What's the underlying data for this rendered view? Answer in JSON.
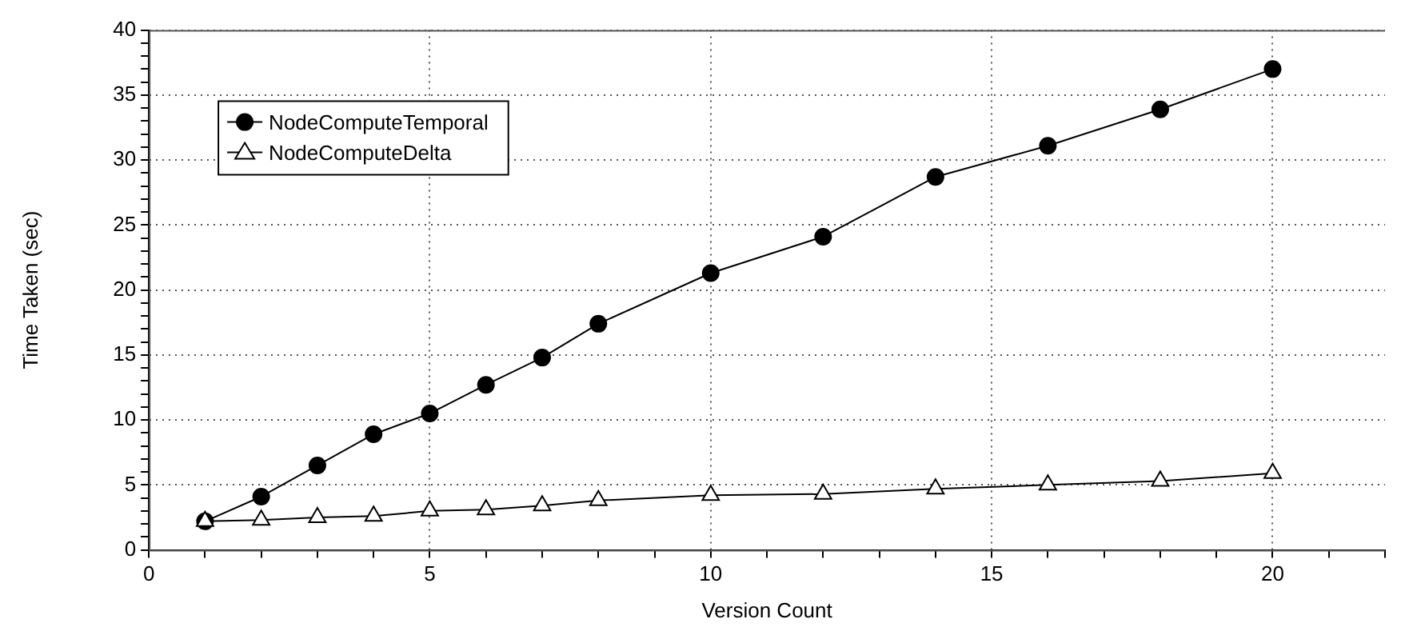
{
  "chart_data": {
    "type": "line",
    "xlabel": "Version Count",
    "ylabel": "Time Taken (sec)",
    "x": [
      1,
      2,
      3,
      4,
      5,
      6,
      7,
      8,
      10,
      12,
      14,
      16,
      18,
      20
    ],
    "series": [
      {
        "name": "NodeComputeTemporal",
        "color": "#000000",
        "marker": "circle",
        "values": [
          2.2,
          4.1,
          6.5,
          8.9,
          10.5,
          12.7,
          14.8,
          17.4,
          21.3,
          24.1,
          28.7,
          31.1,
          33.9,
          37.0
        ]
      },
      {
        "name": "NodeComputeDelta",
        "color": "#000000",
        "marker": "triangle",
        "values": [
          2.2,
          2.3,
          2.5,
          2.6,
          3.0,
          3.1,
          3.4,
          3.8,
          4.2,
          4.3,
          4.7,
          5.0,
          5.3,
          5.9
        ]
      }
    ],
    "xlim": [
      0,
      22
    ],
    "xticks": [
      0,
      {
        "value": 1,
        "label": null
      },
      {
        "value": 2,
        "label": null
      },
      {
        "value": 3,
        "label": null
      },
      {
        "value": 4,
        "label": null
      },
      5,
      {
        "value": 6,
        "label": null
      },
      {
        "value": 7,
        "label": null
      },
      {
        "value": 8,
        "label": null
      },
      {
        "value": 9,
        "label": null
      },
      10,
      {
        "value": 11,
        "label": null
      },
      {
        "value": 12,
        "label": null
      },
      {
        "value": 13,
        "label": null
      },
      {
        "value": 14,
        "label": null
      },
      15,
      {
        "value": 16,
        "label": null
      },
      {
        "value": 17,
        "label": null
      },
      {
        "value": 18,
        "label": null
      },
      {
        "value": 19,
        "label": null
      },
      20,
      {
        "value": 21,
        "label": null
      },
      {
        "value": 22,
        "label": null
      }
    ],
    "ylim": [
      0,
      40
    ],
    "yticks": [
      0,
      {
        "value": 1,
        "label": null
      },
      {
        "value": 2,
        "label": null
      },
      {
        "value": 3,
        "label": null
      },
      {
        "value": 4,
        "label": null
      },
      5,
      {
        "value": 6,
        "label": null
      },
      {
        "value": 7,
        "label": null
      },
      {
        "value": 8,
        "label": null
      },
      {
        "value": 9,
        "label": null
      },
      10,
      {
        "value": 11,
        "label": null
      },
      {
        "value": 12,
        "label": null
      },
      {
        "value": 13,
        "label": null
      },
      {
        "value": 14,
        "label": null
      },
      15,
      {
        "value": 16,
        "label": null
      },
      {
        "value": 17,
        "label": null
      },
      {
        "value": 18,
        "label": null
      },
      {
        "value": 19,
        "label": null
      },
      20,
      {
        "value": 21,
        "label": null
      },
      {
        "value": 22,
        "label": null
      },
      {
        "value": 23,
        "label": null
      },
      {
        "value": 24,
        "label": null
      },
      25,
      {
        "value": 26,
        "label": null
      },
      {
        "value": 27,
        "label": null
      },
      {
        "value": 28,
        "label": null
      },
      {
        "value": 29,
        "label": null
      },
      30,
      {
        "value": 31,
        "label": null
      },
      {
        "value": 32,
        "label": null
      },
      {
        "value": 33,
        "label": null
      },
      {
        "value": 34,
        "label": null
      },
      35,
      {
        "value": 36,
        "label": null
      },
      {
        "value": 37,
        "label": null
      },
      {
        "value": 38,
        "label": null
      },
      {
        "value": 39,
        "label": null
      },
      40
    ],
    "grid": true,
    "legend": "top left",
    "line_style": "solid"
  }
}
